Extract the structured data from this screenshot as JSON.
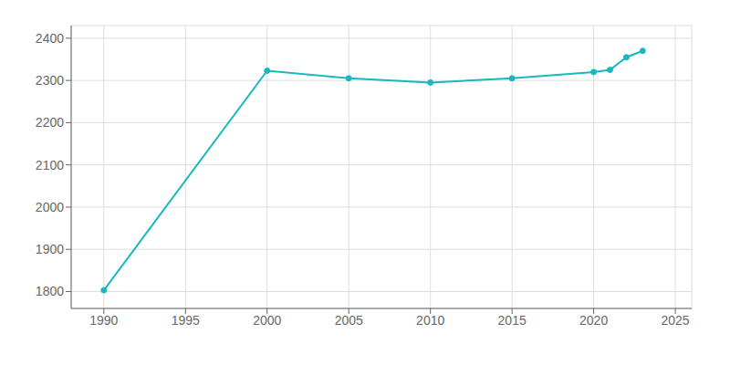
{
  "chart_data": {
    "type": "line",
    "x": [
      1990,
      2000,
      2005,
      2010,
      2015,
      2020,
      2021,
      2022,
      2023
    ],
    "values": [
      1803,
      2323,
      2305,
      2295,
      2305,
      2320,
      2325,
      2355,
      2370
    ],
    "color": "#17b8be",
    "marker": "circle",
    "xlim": [
      1988,
      2026
    ],
    "ylim": [
      1760,
      2430
    ],
    "xticks": [
      1990,
      1995,
      2000,
      2005,
      2010,
      2015,
      2020,
      2025
    ],
    "yticks": [
      1800,
      1900,
      2000,
      2100,
      2200,
      2300,
      2400
    ],
    "grid": true
  }
}
